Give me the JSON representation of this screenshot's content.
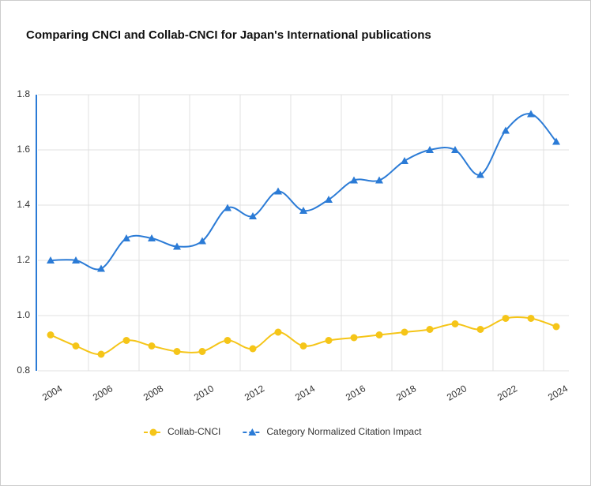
{
  "chart_data": {
    "type": "line",
    "title": "Comparing CNCI and Collab-CNCI for Japan's International publications",
    "categories": [
      "2004",
      null,
      "2006",
      null,
      "2008",
      null,
      "2010",
      null,
      "2012",
      null,
      "2014",
      null,
      "2016",
      null,
      "2018",
      null,
      "2020",
      null,
      "2022",
      null,
      "2024"
    ],
    "series": [
      {
        "name": "Collab-CNCI",
        "color": "#f5c518",
        "marker": "circle",
        "values": [
          0.93,
          0.89,
          0.86,
          0.91,
          0.89,
          0.87,
          0.87,
          0.91,
          0.88,
          0.94,
          0.89,
          0.91,
          0.92,
          0.93,
          0.94,
          0.95,
          0.97,
          0.95,
          0.99,
          0.99,
          0.96
        ]
      },
      {
        "name": "Category Normalized Citation Impact",
        "color": "#2b7bd6",
        "marker": "triangle",
        "values": [
          1.2,
          1.2,
          1.17,
          1.28,
          1.28,
          1.25,
          1.27,
          1.39,
          1.36,
          1.45,
          1.38,
          1.42,
          1.49,
          1.49,
          1.56,
          1.6,
          1.6,
          1.51,
          1.67,
          1.73,
          1.63
        ]
      }
    ],
    "ylim": [
      0.8,
      1.8
    ],
    "yticks": [
      0.8,
      {
        "value": 1,
        "label": "1.0"
      },
      1.2,
      1.4,
      1.6,
      1.8
    ],
    "grid": true
  }
}
